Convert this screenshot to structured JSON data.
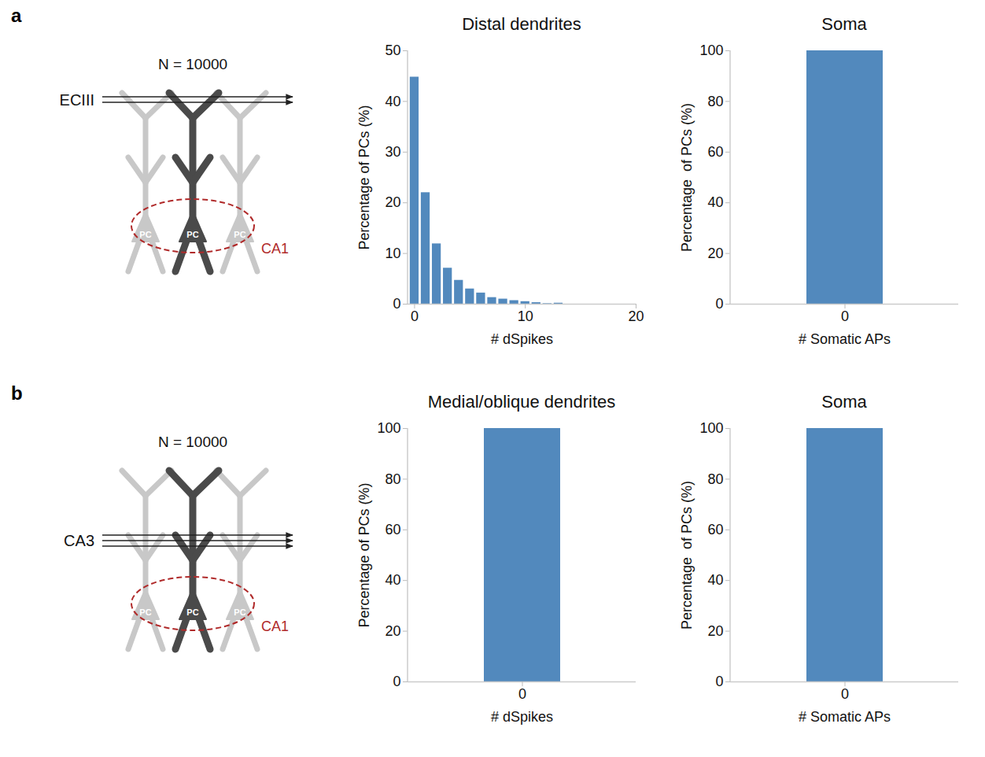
{
  "panels": [
    {
      "letter": "a",
      "diagram": {
        "label": "N = 10000",
        "input": "ECIII",
        "cell": "PC",
        "region": "CA1"
      }
    },
    {
      "letter": "b",
      "diagram": {
        "label": "N = 10000",
        "input": "CA3",
        "cell": "PC",
        "region": "CA1"
      }
    }
  ],
  "chart_data": [
    {
      "type": "bar",
      "title": "Distal dendrites",
      "x": [
        0,
        1,
        2,
        3,
        4,
        5,
        6,
        7,
        8,
        9,
        10,
        11,
        12,
        13
      ],
      "values": [
        44.8,
        22,
        11.9,
        7.1,
        4.7,
        3.0,
        2.2,
        1.3,
        1.0,
        0.7,
        0.5,
        0.3,
        0.1,
        0.2
      ],
      "xlabel": "# dSpikes",
      "ylabel": "Percentage of PCs (%)",
      "xlim": [
        -0.6,
        20
      ],
      "xticks": [
        0,
        10,
        20
      ],
      "ylim": [
        0,
        50
      ],
      "yticks": [
        0,
        10,
        20,
        30,
        40,
        50
      ],
      "color": "#5289bd"
    },
    {
      "type": "bar",
      "title": "Soma",
      "categories": [
        "0"
      ],
      "values": [
        100
      ],
      "xlabel": "# Somatic APs",
      "ylabel": "Percentage  of PCs (%)",
      "ylim": [
        0,
        100
      ],
      "yticks": [
        0,
        20,
        40,
        60,
        80,
        100
      ],
      "color": "#5289bd"
    },
    {
      "type": "bar",
      "title": "Medial/oblique dendrites",
      "categories": [
        "0"
      ],
      "values": [
        100
      ],
      "xlabel": "# dSpikes",
      "ylabel": "Percentage of PCs (%)",
      "ylim": [
        0,
        100
      ],
      "yticks": [
        0,
        20,
        40,
        60,
        80,
        100
      ],
      "color": "#5289bd"
    },
    {
      "type": "bar",
      "title": "Soma",
      "categories": [
        "0"
      ],
      "values": [
        100
      ],
      "xlabel": "# Somatic APs",
      "ylabel": "Percentage  of PCs (%)",
      "ylim": [
        0,
        100
      ],
      "yticks": [
        0,
        20,
        40,
        60,
        80,
        100
      ],
      "color": "#5289bd"
    }
  ]
}
